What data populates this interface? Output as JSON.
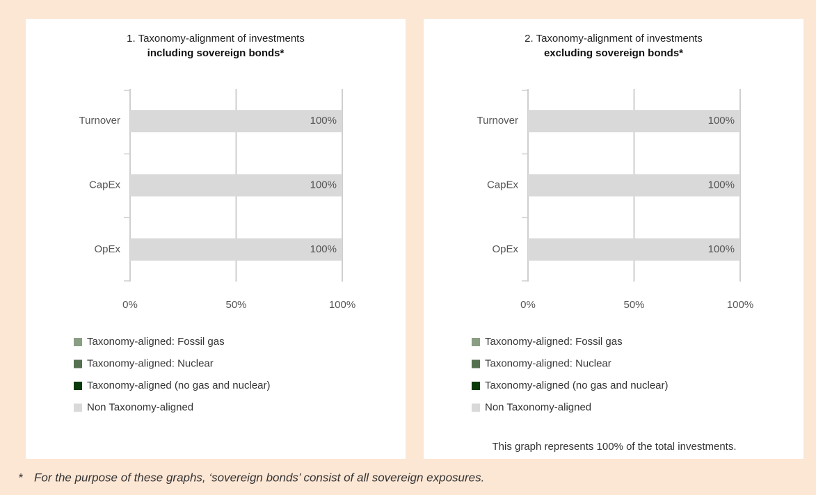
{
  "chart_data": [
    {
      "type": "bar",
      "orientation": "horizontal",
      "stacked": true,
      "title": "1. Taxonomy-alignment of investments",
      "subtitle": "including sovereign bonds*",
      "categories": [
        "Turnover",
        "CapEx",
        "OpEx"
      ],
      "series": [
        {
          "name": "Taxonomy-aligned: Fossil gas",
          "color": "#8a9e84",
          "values": [
            0,
            0,
            0
          ]
        },
        {
          "name": "Taxonomy-aligned: Nuclear",
          "color": "#557050",
          "values": [
            0,
            0,
            0
          ]
        },
        {
          "name": "Taxonomy-aligned (no gas and nuclear)",
          "color": "#0b3b0b",
          "values": [
            0,
            0,
            0
          ]
        },
        {
          "name": "Non Taxonomy-aligned",
          "color": "#d9d9d9",
          "values": [
            100,
            100,
            100
          ],
          "value_labels": [
            "100%",
            "100%",
            "100%"
          ]
        }
      ],
      "xlim": [
        0,
        100
      ],
      "xticks": [
        {
          "value": 0,
          "label": "0%"
        },
        {
          "value": 50,
          "label": "50%"
        },
        {
          "value": 100,
          "label": "100%"
        }
      ],
      "grid": true
    },
    {
      "type": "bar",
      "orientation": "horizontal",
      "stacked": true,
      "title": "2. Taxonomy-alignment of investments",
      "subtitle": "excluding sovereign bonds*",
      "categories": [
        "Turnover",
        "CapEx",
        "OpEx"
      ],
      "series": [
        {
          "name": "Taxonomy-aligned: Fossil gas",
          "color": "#8a9e84",
          "values": [
            0,
            0,
            0
          ]
        },
        {
          "name": "Taxonomy-aligned: Nuclear",
          "color": "#557050",
          "values": [
            0,
            0,
            0
          ]
        },
        {
          "name": "Taxonomy-aligned (no gas and nuclear)",
          "color": "#0b3b0b",
          "values": [
            0,
            0,
            0
          ]
        },
        {
          "name": "Non Taxonomy-aligned",
          "color": "#d9d9d9",
          "values": [
            100,
            100,
            100
          ],
          "value_labels": [
            "100%",
            "100%",
            "100%"
          ]
        }
      ],
      "xlim": [
        0,
        100
      ],
      "xticks": [
        {
          "value": 0,
          "label": "0%"
        },
        {
          "value": 50,
          "label": "50%"
        },
        {
          "value": 100,
          "label": "100%"
        }
      ],
      "grid": true,
      "note": "This graph represents 100% of the total investments."
    }
  ],
  "footnote_marker": "*",
  "footnote": "For the purpose of these graphs, ‘sovereign bonds’ consist of all sovereign exposures."
}
